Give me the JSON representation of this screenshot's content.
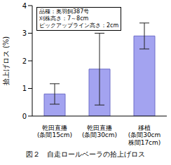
{
  "chart_data": {
    "type": "bar",
    "title": "図２　自走ロールベーラの拾上げロス",
    "y_label": "拾上げロス (%)",
    "categories": [
      "乾田直播\n(条間15cm)",
      "乾田直播\n(条間30cm)",
      "移植\n(条間30cm\n株間17cm)"
    ],
    "values": [
      0.8,
      1.7,
      2.9
    ],
    "errors": [
      0.37,
      1.3,
      0.47
    ],
    "color": "#a3a3f0",
    "ylim": [
      0,
      4
    ],
    "yticks": [
      0,
      1,
      2,
      3,
      4
    ],
    "grid": false,
    "annotations": [
      "品種：奥羽飼387号",
      "刈株高さ：7～8cm",
      "ピックアップライン高さ：2cm"
    ]
  }
}
